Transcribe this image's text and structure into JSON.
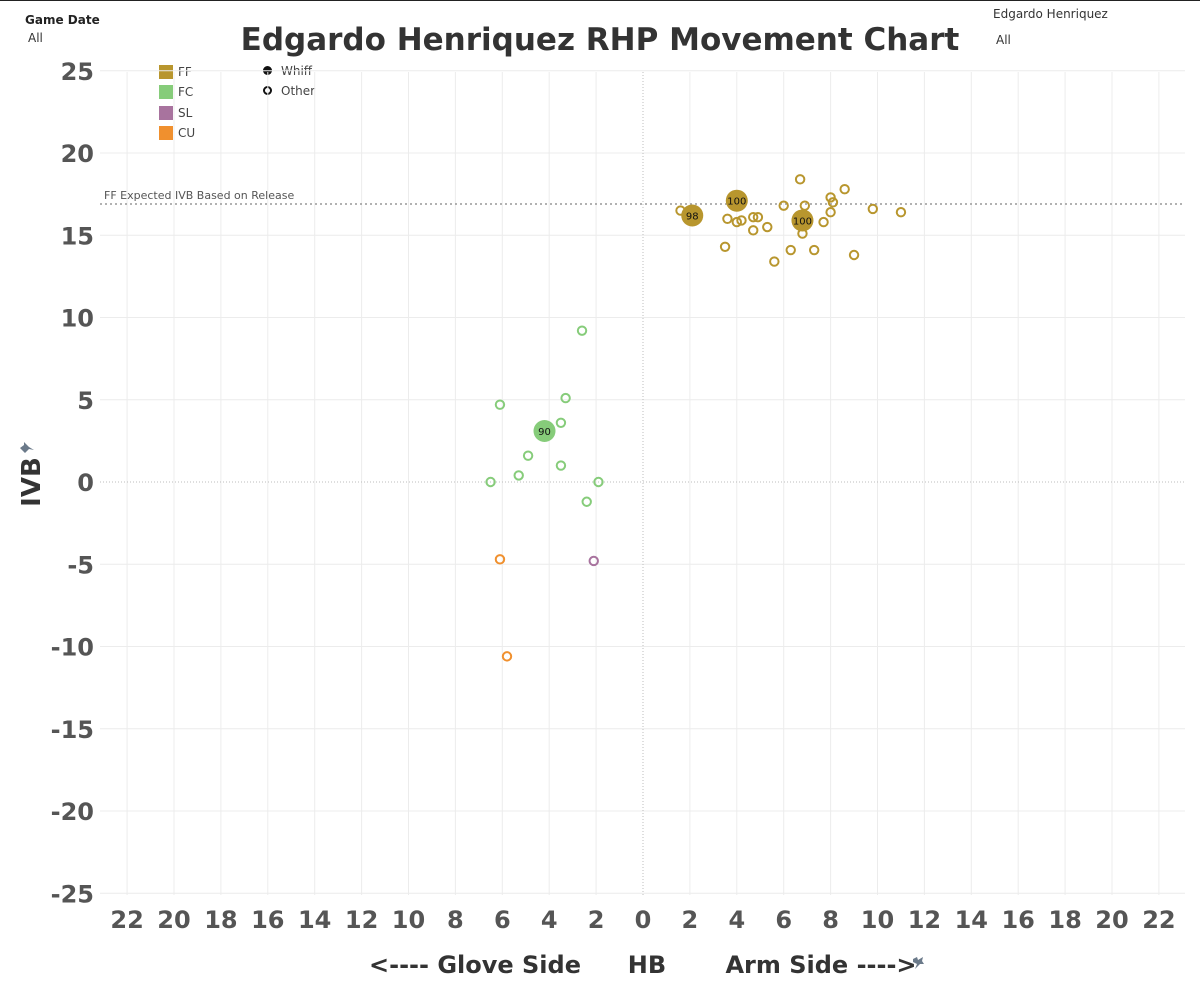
{
  "filters": {
    "game_date_title": "Game Date",
    "game_date_value": "All",
    "player_title": "Edgardo Henriquez",
    "player_value": "All"
  },
  "legend": {
    "pitch_types": [
      {
        "label": "FF",
        "color": "#B8962E"
      },
      {
        "label": "FC",
        "color": "#86CC7A"
      },
      {
        "label": "SL",
        "color": "#A8739E"
      },
      {
        "label": "CU",
        "color": "#F0902E"
      }
    ],
    "shapes": [
      {
        "label": "Whiff",
        "filled": true
      },
      {
        "label": "Other",
        "filled": false
      }
    ]
  },
  "icons": {
    "pin": "pin-icon"
  },
  "chart_data": {
    "type": "scatter",
    "title": "Edgardo Henriquez RHP Movement Chart",
    "xlabel_left": "<---- Glove Side",
    "xlabel_center": "HB",
    "xlabel_right": "Arm Side ---->",
    "ylabel": "IVB",
    "xlim": [
      -23,
      23
    ],
    "ylim": [
      -26,
      26
    ],
    "x_ticks": [
      -22,
      -20,
      -18,
      -16,
      -14,
      -12,
      -10,
      -8,
      -6,
      -4,
      -2,
      0,
      2,
      4,
      6,
      8,
      10,
      12,
      14,
      16,
      18,
      20,
      22
    ],
    "x_tick_labels": [
      "22",
      "20",
      "18",
      "16",
      "14",
      "12",
      "10",
      "8",
      "6",
      "4",
      "2",
      "0",
      "2",
      "4",
      "6",
      "8",
      "10",
      "12",
      "14",
      "16",
      "18",
      "20",
      "22"
    ],
    "y_ticks": [
      25,
      20,
      15,
      10,
      5,
      0,
      -5,
      -10,
      -15,
      -20,
      -25
    ],
    "y_tick_labels": [
      "25",
      "20",
      "15",
      "10",
      "5",
      "0",
      "-5",
      "-10",
      "-15",
      "-20",
      "-25"
    ],
    "grid": true,
    "reference_line": {
      "y": 16.9,
      "label": "FF Expected IVB Based on Release"
    },
    "series": [
      {
        "name": "FF",
        "color": "#B8962E",
        "points": [
          {
            "x": 2.1,
            "y": 16.2,
            "whiff": true,
            "label": "98"
          },
          {
            "x": 4.0,
            "y": 17.1,
            "whiff": true,
            "label": "100"
          },
          {
            "x": 6.8,
            "y": 15.9,
            "whiff": true,
            "label": "100"
          },
          {
            "x": 1.6,
            "y": 16.5,
            "whiff": false
          },
          {
            "x": 3.6,
            "y": 16.0,
            "whiff": false
          },
          {
            "x": 3.5,
            "y": 14.3,
            "whiff": false
          },
          {
            "x": 4.0,
            "y": 15.8,
            "whiff": false
          },
          {
            "x": 4.2,
            "y": 15.9,
            "whiff": false
          },
          {
            "x": 4.7,
            "y": 16.1,
            "whiff": false
          },
          {
            "x": 4.9,
            "y": 16.1,
            "whiff": false
          },
          {
            "x": 4.7,
            "y": 15.3,
            "whiff": false
          },
          {
            "x": 5.3,
            "y": 15.5,
            "whiff": false
          },
          {
            "x": 5.6,
            "y": 13.4,
            "whiff": false
          },
          {
            "x": 6.0,
            "y": 16.8,
            "whiff": false
          },
          {
            "x": 6.3,
            "y": 14.1,
            "whiff": false
          },
          {
            "x": 6.7,
            "y": 18.4,
            "whiff": false
          },
          {
            "x": 6.9,
            "y": 16.8,
            "whiff": false
          },
          {
            "x": 6.8,
            "y": 15.1,
            "whiff": false
          },
          {
            "x": 7.3,
            "y": 14.1,
            "whiff": false
          },
          {
            "x": 7.7,
            "y": 15.8,
            "whiff": false
          },
          {
            "x": 8.0,
            "y": 17.3,
            "whiff": false
          },
          {
            "x": 8.1,
            "y": 17.0,
            "whiff": false
          },
          {
            "x": 8.0,
            "y": 16.4,
            "whiff": false
          },
          {
            "x": 8.6,
            "y": 17.8,
            "whiff": false
          },
          {
            "x": 9.0,
            "y": 13.8,
            "whiff": false
          },
          {
            "x": 9.8,
            "y": 16.6,
            "whiff": false
          },
          {
            "x": 11.0,
            "y": 16.4,
            "whiff": false
          }
        ]
      },
      {
        "name": "FC",
        "color": "#86CC7A",
        "points": [
          {
            "x": -4.2,
            "y": 3.1,
            "whiff": true,
            "label": "90"
          },
          {
            "x": -2.6,
            "y": 9.2,
            "whiff": false
          },
          {
            "x": -6.1,
            "y": 4.7,
            "whiff": false
          },
          {
            "x": -3.3,
            "y": 5.1,
            "whiff": false
          },
          {
            "x": -3.5,
            "y": 3.6,
            "whiff": false
          },
          {
            "x": -4.9,
            "y": 1.6,
            "whiff": false
          },
          {
            "x": -3.5,
            "y": 1.0,
            "whiff": false
          },
          {
            "x": -5.3,
            "y": 0.4,
            "whiff": false
          },
          {
            "x": -6.5,
            "y": 0.0,
            "whiff": false
          },
          {
            "x": -1.9,
            "y": 0.0,
            "whiff": false
          },
          {
            "x": -2.4,
            "y": -1.2,
            "whiff": false
          }
        ]
      },
      {
        "name": "SL",
        "color": "#A8739E",
        "points": [
          {
            "x": -2.1,
            "y": -4.8,
            "whiff": false
          }
        ]
      },
      {
        "name": "CU",
        "color": "#F0902E",
        "points": [
          {
            "x": -6.1,
            "y": -4.7,
            "whiff": false
          },
          {
            "x": -5.8,
            "y": -10.6,
            "whiff": false
          }
        ]
      }
    ]
  }
}
